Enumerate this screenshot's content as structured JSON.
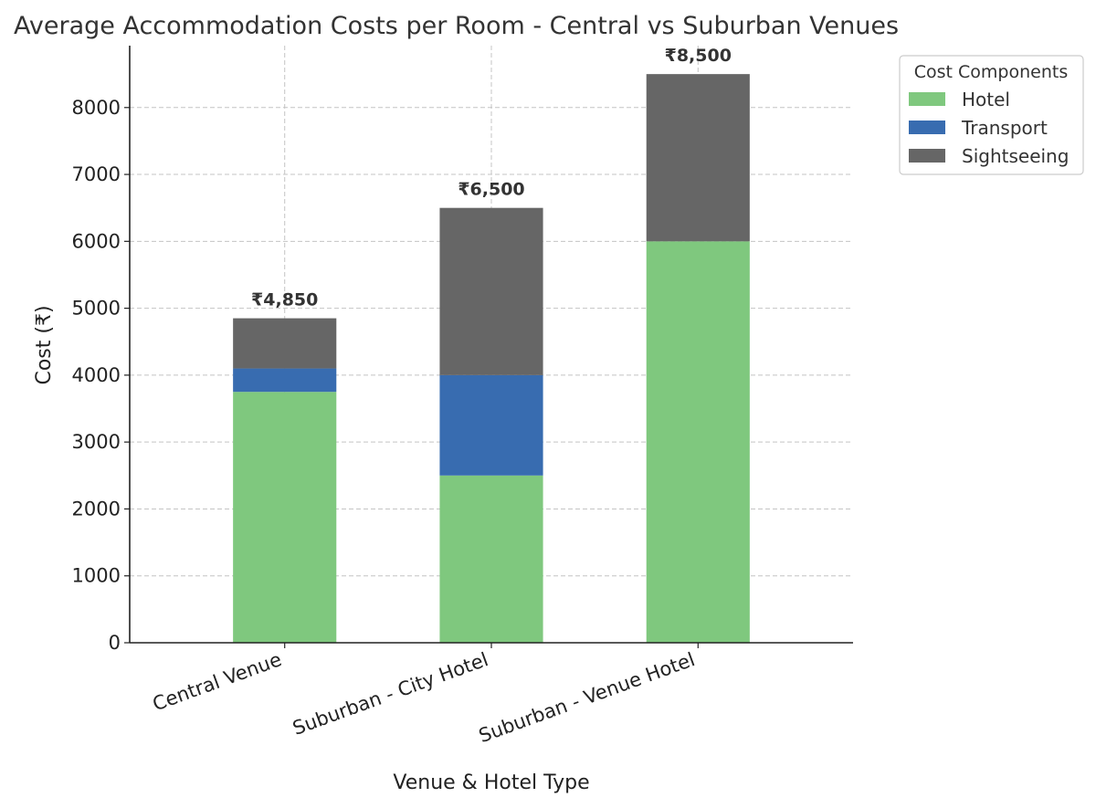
{
  "chart_data": {
    "type": "bar",
    "stacked": true,
    "title": "Average Accommodation Costs per Room - Central vs Suburban Venues",
    "xlabel": "Venue & Hotel Type",
    "ylabel": "Cost (₹)",
    "categories": [
      "Central Venue",
      "Suburban - City Hotel",
      "Suburban - Venue Hotel"
    ],
    "series": [
      {
        "name": "Hotel",
        "color": "#7fc87e",
        "values": [
          3750,
          2500,
          6000
        ]
      },
      {
        "name": "Transport",
        "color": "#386cb0",
        "values": [
          350,
          1500,
          0
        ]
      },
      {
        "name": "Sightseeing",
        "color": "#666666",
        "values": [
          750,
          2500,
          2500
        ]
      }
    ],
    "totals": [
      "₹4,850",
      "₹6,500",
      "₹8,500"
    ],
    "yticks": [
      0,
      1000,
      2000,
      3000,
      4000,
      5000,
      6000,
      7000,
      8000
    ],
    "ylim": [
      0,
      8925
    ],
    "grid": true,
    "legend": {
      "title": "Cost Components",
      "position": "top-right"
    }
  }
}
